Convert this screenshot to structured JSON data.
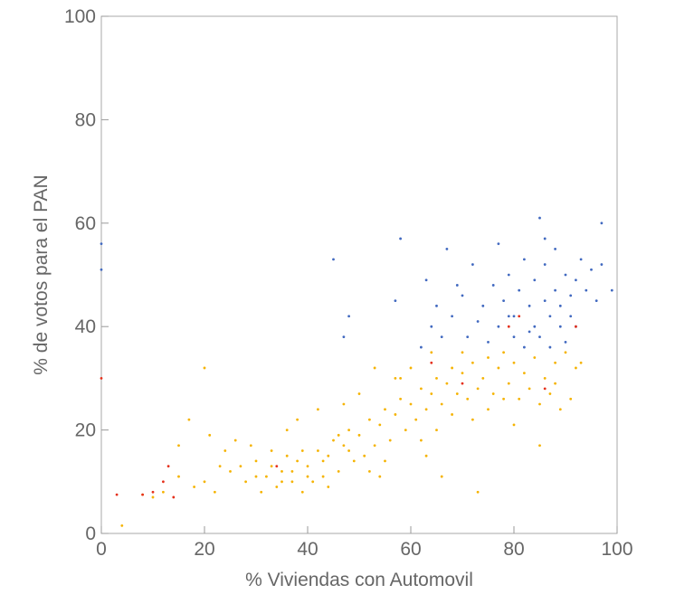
{
  "chart_data": {
    "type": "scatter",
    "x_label": "% Viviendas con Automovil",
    "y_label": "% de votos para el PAN",
    "xlim": [
      0,
      100
    ],
    "ylim": [
      0,
      100
    ],
    "xticks": [
      0,
      20,
      40,
      60,
      80,
      100
    ],
    "yticks": [
      0,
      20,
      40,
      60,
      80,
      100
    ],
    "series": [
      {
        "color": "#f5b301",
        "x": [
          25,
          28,
          30,
          32,
          33,
          35,
          36,
          37,
          38,
          40,
          42,
          44,
          45,
          47,
          48,
          50,
          52,
          54,
          55,
          57,
          58,
          60,
          62,
          64,
          65,
          67,
          68,
          70,
          72,
          74,
          75,
          77,
          78,
          80,
          82,
          84,
          86,
          88,
          90,
          92,
          20,
          22,
          18,
          15,
          12,
          10,
          8,
          24,
          26,
          29,
          31,
          34,
          39,
          41,
          43,
          46,
          49,
          51,
          53,
          56,
          59,
          61,
          63,
          66,
          69,
          71,
          73,
          76,
          79,
          81,
          83,
          85,
          87,
          89,
          91,
          93,
          36,
          38,
          42,
          44,
          47,
          50,
          52,
          55,
          57,
          60,
          62,
          65,
          68,
          70,
          72,
          75,
          78,
          80,
          85,
          88,
          27,
          30,
          33,
          35,
          37,
          39,
          40,
          43,
          46,
          48,
          20,
          4,
          15,
          17,
          21,
          23,
          53,
          58,
          63,
          73,
          64,
          66,
          54
        ],
        "y": [
          12,
          10,
          14,
          11,
          13,
          12,
          15,
          10,
          14,
          13,
          16,
          15,
          18,
          17,
          20,
          19,
          22,
          21,
          24,
          23,
          26,
          25,
          28,
          27,
          30,
          29,
          32,
          31,
          33,
          30,
          34,
          32,
          35,
          33,
          31,
          34,
          30,
          33,
          35,
          32,
          10,
          8,
          9,
          11,
          8,
          7,
          7.5,
          16,
          18,
          17,
          8,
          9,
          8,
          10,
          11,
          12,
          14,
          15,
          17,
          18,
          20,
          22,
          24,
          25,
          27,
          26,
          28,
          27,
          29,
          26,
          28,
          25,
          27,
          24,
          26,
          33,
          20,
          22,
          24,
          9,
          25,
          27,
          12,
          14,
          30,
          32,
          18,
          20,
          23,
          35,
          22,
          24,
          26,
          21,
          17,
          29,
          13,
          11,
          16,
          10,
          12,
          16,
          11,
          14,
          19,
          16,
          32,
          1.5,
          17,
          22,
          19,
          13,
          32,
          30,
          15,
          8,
          35,
          11,
          11
        ]
      },
      {
        "color": "#4169c0",
        "x": [
          62,
          64,
          65,
          66,
          68,
          70,
          71,
          72,
          73,
          74,
          75,
          76,
          77,
          78,
          79,
          80,
          80,
          81,
          82,
          82,
          83,
          84,
          84,
          85,
          85,
          86,
          86,
          87,
          87,
          88,
          88,
          89,
          89,
          90,
          90,
          91,
          91,
          92,
          92,
          93,
          94,
          95,
          96,
          97,
          97,
          99,
          58,
          45,
          48,
          57,
          63,
          69,
          67,
          77,
          79,
          83,
          86,
          0,
          0,
          47
        ],
        "y": [
          36,
          40,
          44,
          38,
          42,
          46,
          38,
          52,
          41,
          44,
          37,
          48,
          40,
          45,
          50,
          38,
          42,
          47,
          36,
          53,
          44,
          40,
          49,
          61,
          38,
          45,
          52,
          42,
          36,
          47,
          55,
          40,
          44,
          50,
          37,
          46,
          42,
          49,
          40,
          53,
          47,
          51,
          45,
          52,
          60,
          47,
          57,
          53,
          42,
          45,
          49,
          48,
          55,
          56,
          42,
          39,
          57,
          56,
          51,
          38
        ]
      },
      {
        "color": "#e5301b",
        "x": [
          3,
          8,
          10,
          14,
          13,
          12,
          64,
          70,
          79,
          86,
          92,
          34,
          81,
          0
        ],
        "y": [
          7.5,
          7.5,
          8,
          7,
          13,
          10,
          33,
          29,
          40,
          28,
          40,
          13,
          42,
          30
        ]
      }
    ]
  }
}
